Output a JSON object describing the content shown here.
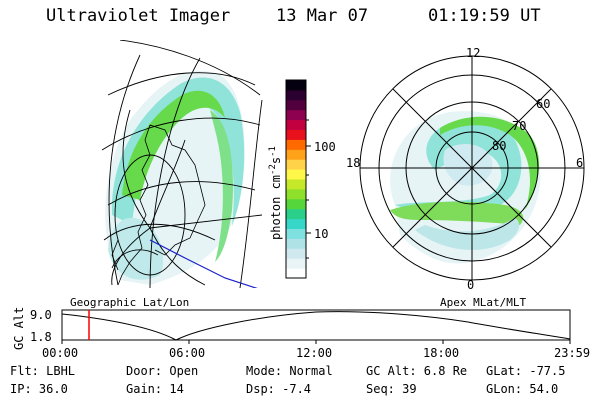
{
  "header": {
    "instrument": "Ultraviolet Imager",
    "date": "13 Mar 07",
    "time": "01:19:59 UT"
  },
  "colorbar": {
    "unit": "photon cm",
    "unit_sup1": "-2",
    "unit_s": "s",
    "unit_sup2": "-1",
    "ticks": [
      "100",
      "10"
    ],
    "colors": [
      "#ffffff",
      "#e9f4f6",
      "#cfe9ee",
      "#aee2e6",
      "#7fe0e0",
      "#36d6c8",
      "#2ad08a",
      "#55d63a",
      "#8ee02a",
      "#c5e829",
      "#fff84a",
      "#ffd24a",
      "#ffa21a",
      "#ff6a00",
      "#e8101a",
      "#c20040",
      "#8e0050",
      "#52003d",
      "#2a0030",
      "#050010"
    ]
  },
  "left_map": {
    "label": "Geographic Lat/Lon"
  },
  "polar_map": {
    "label": "Apex MLat/MLT",
    "mlt_labels": {
      "top": "12",
      "left": "18",
      "right": "6",
      "bottom": "0"
    },
    "lat_labels": [
      "60",
      "70",
      "80"
    ]
  },
  "timeline": {
    "axis_label": "GC Alt",
    "y_max": "9.0",
    "y_min": "1.8",
    "x_ticks": [
      "00:00",
      "06:00",
      "12:00",
      "18:00",
      "23:59"
    ],
    "marker_color": "#ff0000"
  },
  "status": {
    "flt": "Flt: LBHL",
    "ip": "IP: 36.0",
    "door": "Door: Open",
    "gain": "Gain: 14",
    "mode": "Mode: Normal",
    "dsp": "Dsp:   -7.4",
    "gc_alt": "GC Alt: 6.8 Re",
    "seq": "Seq: 39",
    "glat": "GLat:  -77.5",
    "glon": "GLon:  54.0"
  }
}
